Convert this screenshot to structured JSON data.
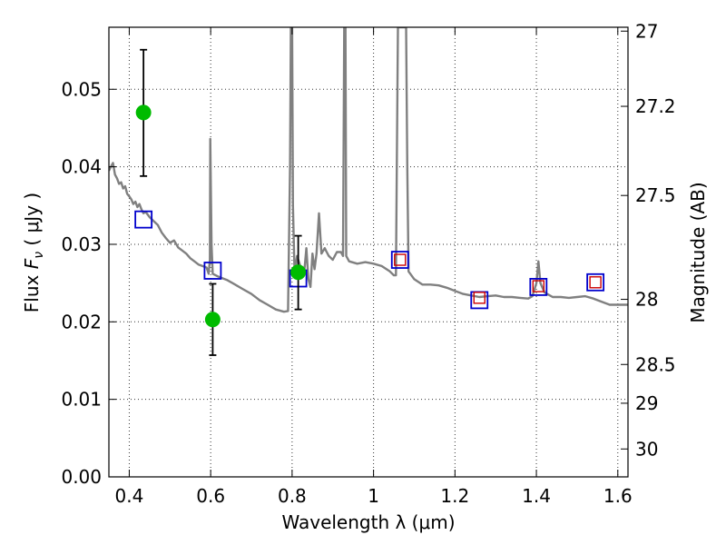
{
  "chart_data": {
    "type": "scatter",
    "xlabel": "Wavelength  λ (μm)",
    "ylabel_left": "Flux  Fν  ( μJy )",
    "ylabel_left_parts": [
      "Flux ",
      "F",
      "ν",
      " ( μJy )"
    ],
    "ylabel_right": "Magnitude (AB)",
    "xlim": [
      0.35,
      1.625
    ],
    "ylim": [
      0.0,
      0.058
    ],
    "grid": true,
    "x_ticks": [
      0.4,
      0.6,
      0.8,
      1.0,
      1.2,
      1.4,
      1.6
    ],
    "x_tick_labels": [
      "0.4",
      "0.6",
      "0.8",
      "1",
      "1.2",
      "1.4",
      "1.6"
    ],
    "y_ticks": [
      0.0,
      0.01,
      0.02,
      0.03,
      0.04,
      0.05
    ],
    "y_tick_labels": [
      "0.00",
      "0.01",
      "0.02",
      "0.03",
      "0.04",
      "0.05"
    ],
    "y2_ticks": [
      {
        "label": "27",
        "flux": 0.0575
      },
      {
        "label": "27.2",
        "flux": 0.0478
      },
      {
        "label": "27.5",
        "flux": 0.0363
      },
      {
        "label": "28",
        "flux": 0.0229
      },
      {
        "label": "28.5",
        "flux": 0.0145
      },
      {
        "label": "29",
        "flux": 0.0095
      },
      {
        "label": "30",
        "flux": 0.0036
      }
    ],
    "series": [
      {
        "kind": "model_sed",
        "color": "#808080",
        "points": [
          [
            0.35,
            0.0395
          ],
          [
            0.355,
            0.04
          ],
          [
            0.36,
            0.0405
          ],
          [
            0.365,
            0.039
          ],
          [
            0.37,
            0.0385
          ],
          [
            0.375,
            0.0378
          ],
          [
            0.38,
            0.038
          ],
          [
            0.385,
            0.0372
          ],
          [
            0.39,
            0.0375
          ],
          [
            0.395,
            0.0365
          ],
          [
            0.4,
            0.0362
          ],
          [
            0.405,
            0.0358
          ],
          [
            0.41,
            0.0352
          ],
          [
            0.415,
            0.0355
          ],
          [
            0.42,
            0.0348
          ],
          [
            0.425,
            0.0352
          ],
          [
            0.43,
            0.0345
          ],
          [
            0.435,
            0.034
          ],
          [
            0.44,
            0.0342
          ],
          [
            0.45,
            0.0335
          ],
          [
            0.46,
            0.033
          ],
          [
            0.47,
            0.0325
          ],
          [
            0.48,
            0.0315
          ],
          [
            0.49,
            0.0308
          ],
          [
            0.5,
            0.0302
          ],
          [
            0.51,
            0.0305
          ],
          [
            0.52,
            0.0296
          ],
          [
            0.53,
            0.0292
          ],
          [
            0.54,
            0.0288
          ],
          [
            0.55,
            0.0282
          ],
          [
            0.56,
            0.0278
          ],
          [
            0.57,
            0.0274
          ],
          [
            0.58,
            0.0272
          ],
          [
            0.59,
            0.027
          ],
          [
            0.595,
            0.0262
          ],
          [
            0.598,
            0.028
          ],
          [
            0.599,
            0.0436
          ],
          [
            0.602,
            0.03
          ],
          [
            0.605,
            0.0262
          ],
          [
            0.62,
            0.0258
          ],
          [
            0.64,
            0.0254
          ],
          [
            0.66,
            0.0248
          ],
          [
            0.68,
            0.0242
          ],
          [
            0.7,
            0.0236
          ],
          [
            0.72,
            0.0228
          ],
          [
            0.74,
            0.0222
          ],
          [
            0.76,
            0.0216
          ],
          [
            0.78,
            0.0213
          ],
          [
            0.79,
            0.0214
          ],
          [
            0.795,
            0.04
          ],
          [
            0.797,
            0.058
          ],
          [
            0.8,
            0.058
          ],
          [
            0.802,
            0.035
          ],
          [
            0.806,
            0.0262
          ],
          [
            0.812,
            0.0285
          ],
          [
            0.82,
            0.0272
          ],
          [
            0.83,
            0.0265
          ],
          [
            0.835,
            0.0295
          ],
          [
            0.84,
            0.0255
          ],
          [
            0.845,
            0.0245
          ],
          [
            0.85,
            0.0288
          ],
          [
            0.855,
            0.0268
          ],
          [
            0.86,
            0.0288
          ],
          [
            0.866,
            0.034
          ],
          [
            0.872,
            0.0288
          ],
          [
            0.88,
            0.0295
          ],
          [
            0.885,
            0.029
          ],
          [
            0.89,
            0.0285
          ],
          [
            0.9,
            0.028
          ],
          [
            0.91,
            0.029
          ],
          [
            0.92,
            0.029
          ],
          [
            0.925,
            0.0285
          ],
          [
            0.928,
            0.058
          ],
          [
            0.931,
            0.058
          ],
          [
            0.933,
            0.0285
          ],
          [
            0.94,
            0.0278
          ],
          [
            0.96,
            0.0275
          ],
          [
            0.98,
            0.0277
          ],
          [
            1.0,
            0.0275
          ],
          [
            1.02,
            0.0272
          ],
          [
            1.04,
            0.0265
          ],
          [
            1.05,
            0.026
          ],
          [
            1.055,
            0.026
          ],
          [
            1.058,
            0.045
          ],
          [
            1.06,
            0.058
          ],
          [
            1.075,
            0.058
          ],
          [
            1.08,
            0.058
          ],
          [
            1.083,
            0.04
          ],
          [
            1.086,
            0.0265
          ],
          [
            1.1,
            0.0255
          ],
          [
            1.12,
            0.0248
          ],
          [
            1.14,
            0.0248
          ],
          [
            1.16,
            0.0247
          ],
          [
            1.18,
            0.0244
          ],
          [
            1.2,
            0.024
          ],
          [
            1.22,
            0.0236
          ],
          [
            1.24,
            0.0234
          ],
          [
            1.26,
            0.0232
          ],
          [
            1.28,
            0.0233
          ],
          [
            1.3,
            0.0234
          ],
          [
            1.32,
            0.0232
          ],
          [
            1.34,
            0.0232
          ],
          [
            1.36,
            0.0231
          ],
          [
            1.38,
            0.023
          ],
          [
            1.39,
            0.0233
          ],
          [
            1.4,
            0.025
          ],
          [
            1.405,
            0.0278
          ],
          [
            1.41,
            0.025
          ],
          [
            1.42,
            0.0238
          ],
          [
            1.44,
            0.0232
          ],
          [
            1.46,
            0.0232
          ],
          [
            1.48,
            0.0231
          ],
          [
            1.5,
            0.0232
          ],
          [
            1.52,
            0.0233
          ],
          [
            1.54,
            0.023
          ],
          [
            1.56,
            0.0226
          ],
          [
            1.58,
            0.0222
          ],
          [
            1.6,
            0.0222
          ],
          [
            1.625,
            0.0222
          ]
        ]
      },
      {
        "kind": "model_photometry",
        "color": "#0000cc",
        "marker": "open_square",
        "x": [
          0.435,
          0.605,
          0.815,
          1.065,
          1.26,
          1.405,
          1.545
        ],
        "y": [
          0.0332,
          0.0266,
          0.0256,
          0.028,
          0.0228,
          0.0245,
          0.0251
        ]
      },
      {
        "kind": "observed_photometry",
        "color": "#cc0000",
        "marker": "open_square",
        "x": [
          1.065,
          1.26,
          1.405,
          1.545
        ],
        "y": [
          0.028,
          0.0231,
          0.0246,
          0.0251
        ]
      },
      {
        "kind": "observed_detections",
        "color": "#00bb00",
        "marker": "filled_circle",
        "points": [
          {
            "x": 0.435,
            "y": 0.047,
            "ylow": 0.0388,
            "yhigh": 0.0551
          },
          {
            "x": 0.605,
            "y": 0.0203,
            "ylow": 0.0157,
            "yhigh": 0.0249
          },
          {
            "x": 0.815,
            "y": 0.0264,
            "ylow": 0.0216,
            "yhigh": 0.0311
          }
        ]
      }
    ]
  }
}
